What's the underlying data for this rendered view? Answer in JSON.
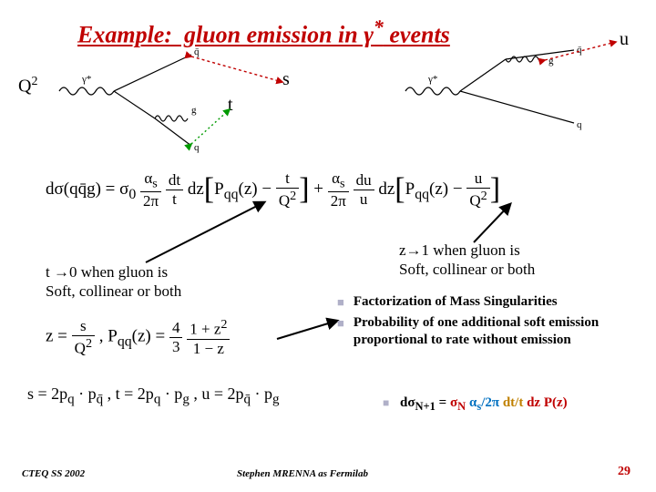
{
  "title_html": "Example:&nbsp; gluon emission in γ<sup>*</sup> events",
  "labels": {
    "Q2": "Q",
    "Q2sup": "2",
    "s": "s",
    "t": "t",
    "u": "u"
  },
  "eq_main_html": "dσ(qq̄g) = σ<sub>0</sub> <span class='frac'><span class='n'>α<sub>s</sub></span><span class='d'>2π</span></span> <span class='frac'><span class='n'>dt</span><span class='d'>t</span></span> dz<span class='bigbrack'>[</span>P<sub>qq</sub>(z) − <span class='frac'><span class='n'>t</span><span class='d'>Q<sup>2</sup></span></span><span class='bigbrack'>]</span> + <span class='frac'><span class='n'>α<sub>s</sub></span><span class='d'>2π</span></span> <span class='frac'><span class='n'>du</span><span class='d'>u</span></span> dz<span class='bigbrack'>[</span>P<sub>qq</sub>(z) − <span class='frac'><span class='n'>u</span><span class='d'>Q<sup>2</sup></span></span><span class='bigbrack'>]</span>",
  "eq_spz_html": "z = <span class='frac'><span class='n'>s</span><span class='d'>Q<sup>2</sup></span></span> , P<sub>qq</sub>(z) = <span class='frac'><span class='n'>4</span><span class='d'>3</span></span> <span class='frac'><span class='n'>1 + z<sup>2</sup></span><span class='d'>1 − z</span></span>",
  "eq_stu_html": "s = 2p<sub>q</sub> · p<sub>q̄</sub> , t = 2p<sub>q</sub> · p<sub>g</sub> , u = 2p<sub>q̄</sub> · p<sub>g</sub>",
  "note_t_html": "t →0 when gluon is<br>Soft, collinear or both",
  "note_z_html": "z→1 when gluon is<br>Soft, collinear or both",
  "bullets": {
    "b1": "Factorization of Mass Singularities",
    "b2": "Probability of one additional soft emission proportional to rate without emission"
  },
  "sub_bullet_html": "dσ<sub>N+1</sub> = <span style='color:#c00000'>σ<sub>N</sub></span> <span style='color:#0070c0'>α<sub>s</sub>/2π</span> <span style='color:#c08000'>dt/t</span> <span style='color:#c00000'>dz P(z)</span>",
  "footer": {
    "left": "CTEQ SS 2002",
    "center": "Stephen MRENNA as Fermilab",
    "page": "29"
  },
  "colors": {
    "title": "#c00000",
    "page": "#c00000",
    "s_arrow": "#c00000",
    "t_arrow": "#009a00",
    "u_arrow": "#c00000",
    "black_arrow": "#000000"
  }
}
